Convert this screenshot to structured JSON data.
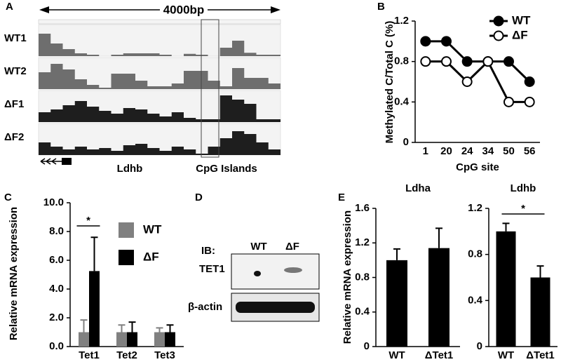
{
  "genome_browser": {
    "panel": "A",
    "scale_label": "4000bp",
    "tracks": [
      "WT1",
      "WT2",
      "ΔF1",
      "ΔF2"
    ],
    "gene": "Ldhb",
    "region": "CpG Islands"
  },
  "western_blot": {
    "panel": "D",
    "lanes": [
      "WT",
      "ΔF"
    ],
    "prefix": "IB:",
    "rows": [
      "TET1",
      "β-actin"
    ]
  },
  "chart_data": [
    {
      "panel": "B",
      "type": "line",
      "xlabel": "CpG site",
      "ylabel": "Methylated C/Total C (%)",
      "categories": [
        "1",
        "20",
        "24",
        "34",
        "50",
        "56"
      ],
      "series": [
        {
          "name": "WT",
          "color": "#000000",
          "marker_fill": "#000000",
          "values": [
            1.0,
            1.0,
            0.8,
            0.8,
            0.8,
            0.6
          ]
        },
        {
          "name": "ΔF",
          "color": "#000000",
          "marker_fill": "#ffffff",
          "values": [
            0.8,
            0.8,
            0.6,
            0.8,
            0.4,
            0.4
          ]
        }
      ],
      "ylim": [
        0,
        1.2
      ],
      "yticks": [
        0,
        0.4,
        0.8,
        1.2
      ],
      "legend": "upper right"
    },
    {
      "panel": "C",
      "type": "bar",
      "ylabel": "Relative mRNA expression",
      "categories": [
        "Tet1",
        "Tet2",
        "Tet3"
      ],
      "series": [
        {
          "name": "WT",
          "color": "#808080",
          "values": [
            1.0,
            1.0,
            1.0
          ],
          "errors": [
            0.85,
            0.5,
            0.3
          ]
        },
        {
          "name": "ΔF",
          "color": "#000000",
          "values": [
            5.25,
            1.0,
            1.0
          ],
          "errors": [
            2.35,
            0.7,
            0.5
          ]
        }
      ],
      "ylim": [
        0,
        10
      ],
      "yticks": [
        {
          "value": 0,
          "label": "0.0"
        },
        {
          "value": 2,
          "label": "2.0"
        },
        {
          "value": 4,
          "label": "4.0"
        },
        {
          "value": 6,
          "label": "6.0"
        },
        {
          "value": 8,
          "label": "8.0"
        },
        {
          "value": 10,
          "label": "10.0"
        }
      ],
      "annotations": [
        "*"
      ],
      "legend": "upper right"
    },
    {
      "panel": "E",
      "type": "bar",
      "title": "Ldha",
      "ylabel": "Relative mRNA expression",
      "categories": [
        "WT",
        "ΔTet1"
      ],
      "series": [
        {
          "color": "#000000",
          "values": [
            1.0,
            1.14
          ],
          "errors": [
            0.13,
            0.23
          ]
        }
      ],
      "ylim": [
        0,
        1.6
      ],
      "yticks": [
        0,
        0.4,
        0.8,
        1.2,
        1.6
      ]
    },
    {
      "type": "bar",
      "title": "Ldhb",
      "categories": [
        "WT",
        "ΔTet1"
      ],
      "series": [
        {
          "color": "#000000",
          "values": [
            1.0,
            0.6
          ],
          "errors": [
            0.07,
            0.1
          ]
        }
      ],
      "ylim": [
        0,
        1.2
      ],
      "yticks": [
        0,
        0.4,
        0.8,
        1.2
      ],
      "annotations": [
        "*"
      ]
    }
  ]
}
